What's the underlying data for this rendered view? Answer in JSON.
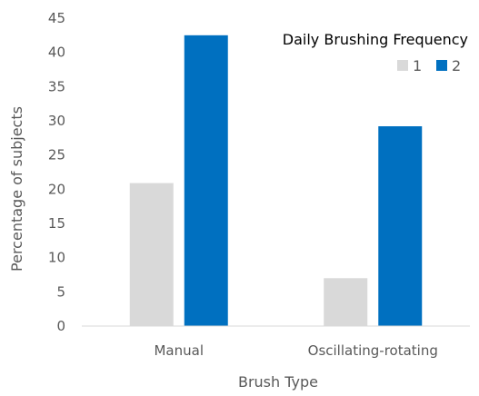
{
  "chart_data": {
    "type": "bar",
    "categories": [
      "Manual",
      "Oscillating-rotating"
    ],
    "series": [
      {
        "name": "1",
        "values": [
          20.9,
          7.0
        ],
        "color": "#D9D9D9"
      },
      {
        "name": "2",
        "values": [
          42.5,
          29.2
        ],
        "color": "#0070C0"
      }
    ],
    "xlabel": "Brush Type",
    "ylabel": "Percentage of subjects",
    "ylim": [
      0,
      45
    ],
    "yticks": [
      0,
      5,
      10,
      15,
      20,
      25,
      30,
      35,
      40,
      45
    ],
    "grid": false,
    "legend": {
      "title": "Daily Brushing Frequency",
      "position": "top-right"
    }
  }
}
